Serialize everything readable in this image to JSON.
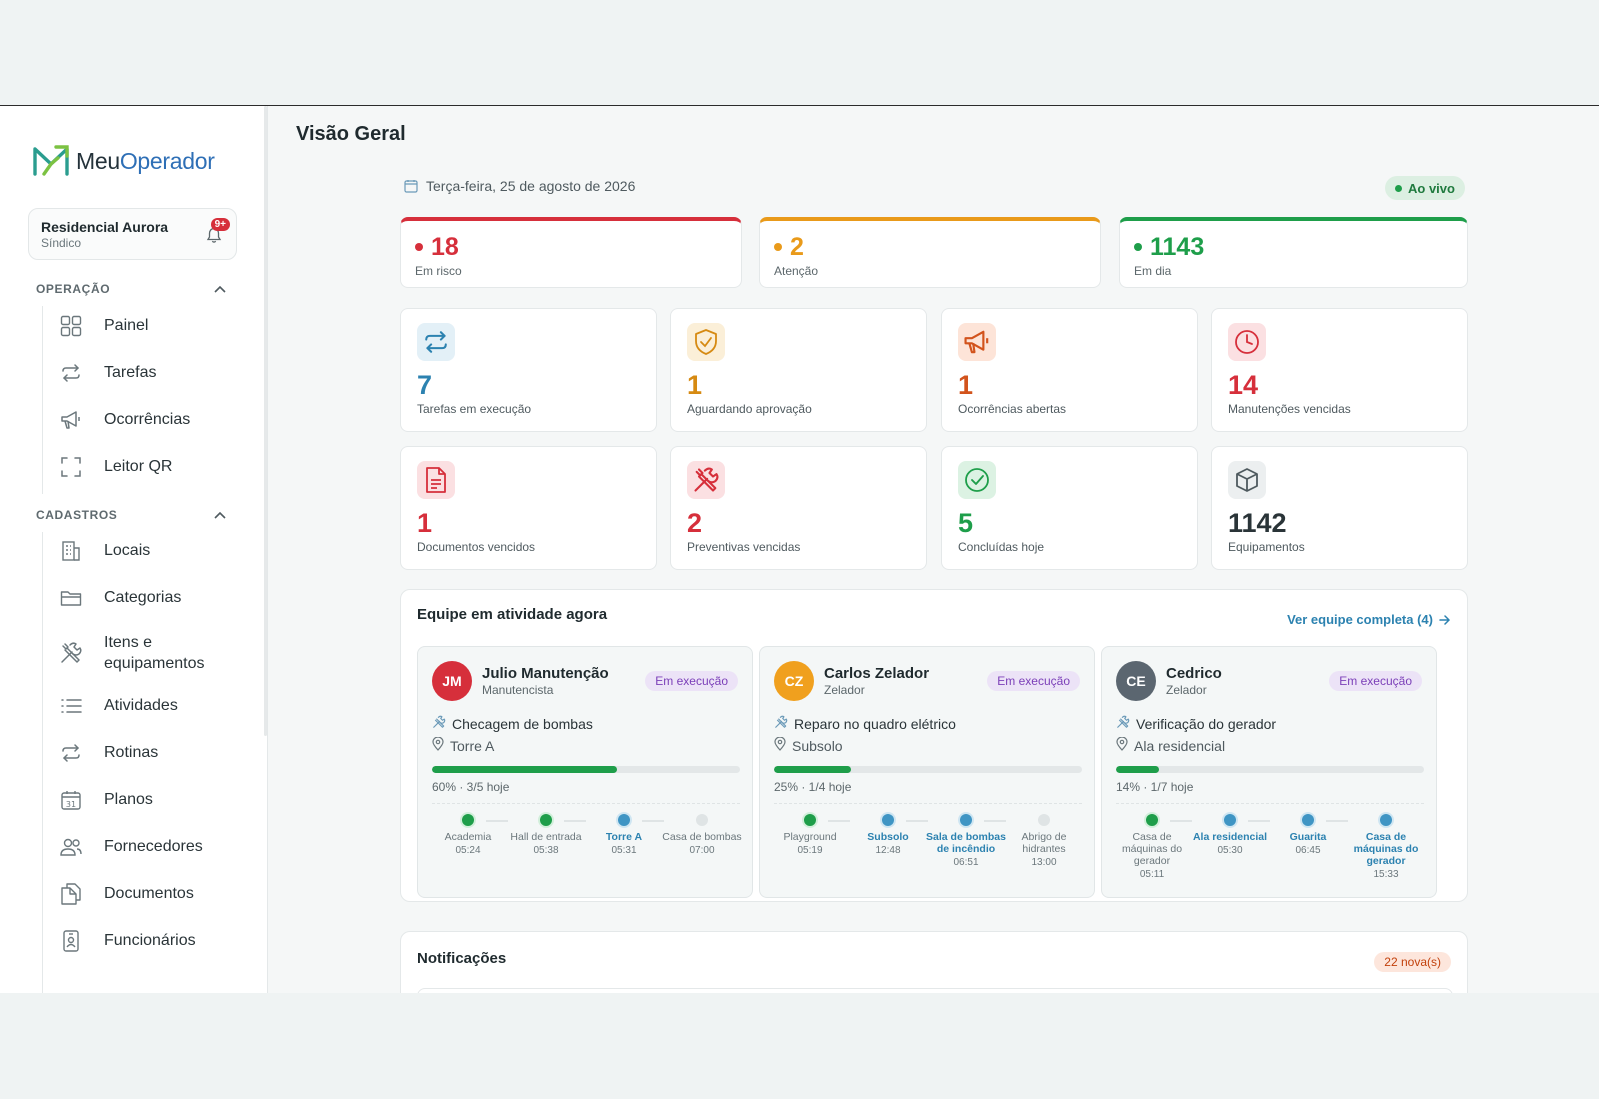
{
  "app": {
    "logo_meu": "Meu",
    "logo_operador": "Operador"
  },
  "condo": {
    "name": "Residencial Aurora",
    "role": "Síndico",
    "notifications_badge": "9+"
  },
  "sidebar": {
    "sections": [
      {
        "title": "OPERAÇÃO",
        "items": [
          {
            "label": "Painel",
            "icon": "grid-icon"
          },
          {
            "label": "Tarefas",
            "icon": "repeat-icon"
          },
          {
            "label": "Ocorrências",
            "icon": "megaphone-icon"
          },
          {
            "label": "Leitor QR",
            "icon": "scan-icon"
          }
        ]
      },
      {
        "title": "CADASTROS",
        "items": [
          {
            "label": "Locais",
            "icon": "building-icon"
          },
          {
            "label": "Categorias",
            "icon": "folder-icon"
          },
          {
            "label": "Itens e equipamentos",
            "icon": "tools-icon"
          },
          {
            "label": "Atividades",
            "icon": "list-icon"
          },
          {
            "label": "Rotinas",
            "icon": "repeat-icon"
          },
          {
            "label": "Planos",
            "icon": "calendar-icon"
          },
          {
            "label": "Fornecedores",
            "icon": "users-icon"
          },
          {
            "label": "Documentos",
            "icon": "documents-icon"
          },
          {
            "label": "Funcionários",
            "icon": "badge-icon"
          }
        ]
      }
    ]
  },
  "main": {
    "title": "Visão Geral",
    "date": "Terça-feira, 25 de agosto de 2026",
    "live_label": "Ao vivo",
    "status": [
      {
        "value": "18",
        "label": "Em risco",
        "color": "#d62f3b"
      },
      {
        "value": "2",
        "label": "Atenção",
        "color": "#e99a1a"
      },
      {
        "value": "1143",
        "label": "Em dia",
        "color": "#1e9e4a"
      }
    ],
    "kpis": [
      {
        "value": "7",
        "label": "Tarefas em execução",
        "icon": "repeat-icon",
        "color": "#2c82b0",
        "bg": "#e3f0f7"
      },
      {
        "value": "1",
        "label": "Aguardando aprovação",
        "icon": "shield-check-icon",
        "color": "#d68a12",
        "bg": "#fbefd8"
      },
      {
        "value": "1",
        "label": "Ocorrências abertas",
        "icon": "megaphone-icon",
        "color": "#d2531c",
        "bg": "#fde4d8"
      },
      {
        "value": "14",
        "label": "Manutenções vencidas",
        "icon": "clock-icon",
        "color": "#d62f3b",
        "bg": "#fbe0e2"
      },
      {
        "value": "1",
        "label": "Documentos vencidos",
        "icon": "document-icon",
        "color": "#d62f3b",
        "bg": "#fbe0e2"
      },
      {
        "value": "2",
        "label": "Preventivas vencidas",
        "icon": "tools-icon",
        "color": "#d62f3b",
        "bg": "#fbe0e2"
      },
      {
        "value": "5",
        "label": "Concluídas hoje",
        "icon": "check-circle-icon",
        "color": "#1e9e4a",
        "bg": "#dcf2e3"
      },
      {
        "value": "1142",
        "label": "Equipamentos",
        "icon": "box-icon",
        "color": "#2a3438",
        "bg": "#eceff0"
      }
    ],
    "team": {
      "title": "Equipe em atividade agora",
      "link": "Ver equipe completa (4)",
      "members": [
        {
          "initials": "JM",
          "name": "Julio Manutenção",
          "role": "Manutencista",
          "status": "Em execução",
          "avatar_color": "#d62f3b",
          "task": "Checagem de bombas",
          "location": "Torre A",
          "progress": 0.6,
          "progress_text": "60% · 3/5 hoje",
          "stops": [
            {
              "name": "Academia",
              "time": "05:24",
              "state": "done"
            },
            {
              "name": "Hall de entrada",
              "time": "05:38",
              "state": "done"
            },
            {
              "name": "Torre A",
              "time": "05:31",
              "state": "active"
            },
            {
              "name": "Casa de bombas",
              "time": "07:00",
              "state": "pending"
            }
          ]
        },
        {
          "initials": "CZ",
          "name": "Carlos Zelador",
          "role": "Zelador",
          "status": "Em execução",
          "avatar_color": "#f0a01e",
          "task": "Reparo no quadro elétrico",
          "location": "Subsolo",
          "progress": 0.25,
          "progress_text": "25% · 1/4 hoje",
          "stops": [
            {
              "name": "Playground",
              "time": "05:19",
              "state": "done"
            },
            {
              "name": "Subsolo",
              "time": "12:48",
              "state": "active"
            },
            {
              "name": "Sala de bombas de incêndio",
              "time": "06:51",
              "state": "active"
            },
            {
              "name": "Abrigo de hidrantes",
              "time": "13:00",
              "state": "pending"
            }
          ]
        },
        {
          "initials": "CE",
          "name": "Cedrico",
          "role": "Zelador",
          "status": "Em execução",
          "avatar_color": "#5b6670",
          "task": "Verificação do gerador",
          "location": "Ala residencial",
          "progress": 0.14,
          "progress_text": "14% · 1/7 hoje",
          "stops": [
            {
              "name": "Casa de máquinas do gerador",
              "time": "05:11",
              "state": "done"
            },
            {
              "name": "Ala residencial",
              "time": "05:30",
              "state": "active"
            },
            {
              "name": "Guarita",
              "time": "06:45",
              "state": "active"
            },
            {
              "name": "Casa de máquinas do gerador",
              "time": "15:33",
              "state": "active"
            }
          ]
        }
      ]
    },
    "notifications": {
      "title": "Notificações",
      "badge": "22 nova(s)"
    }
  }
}
